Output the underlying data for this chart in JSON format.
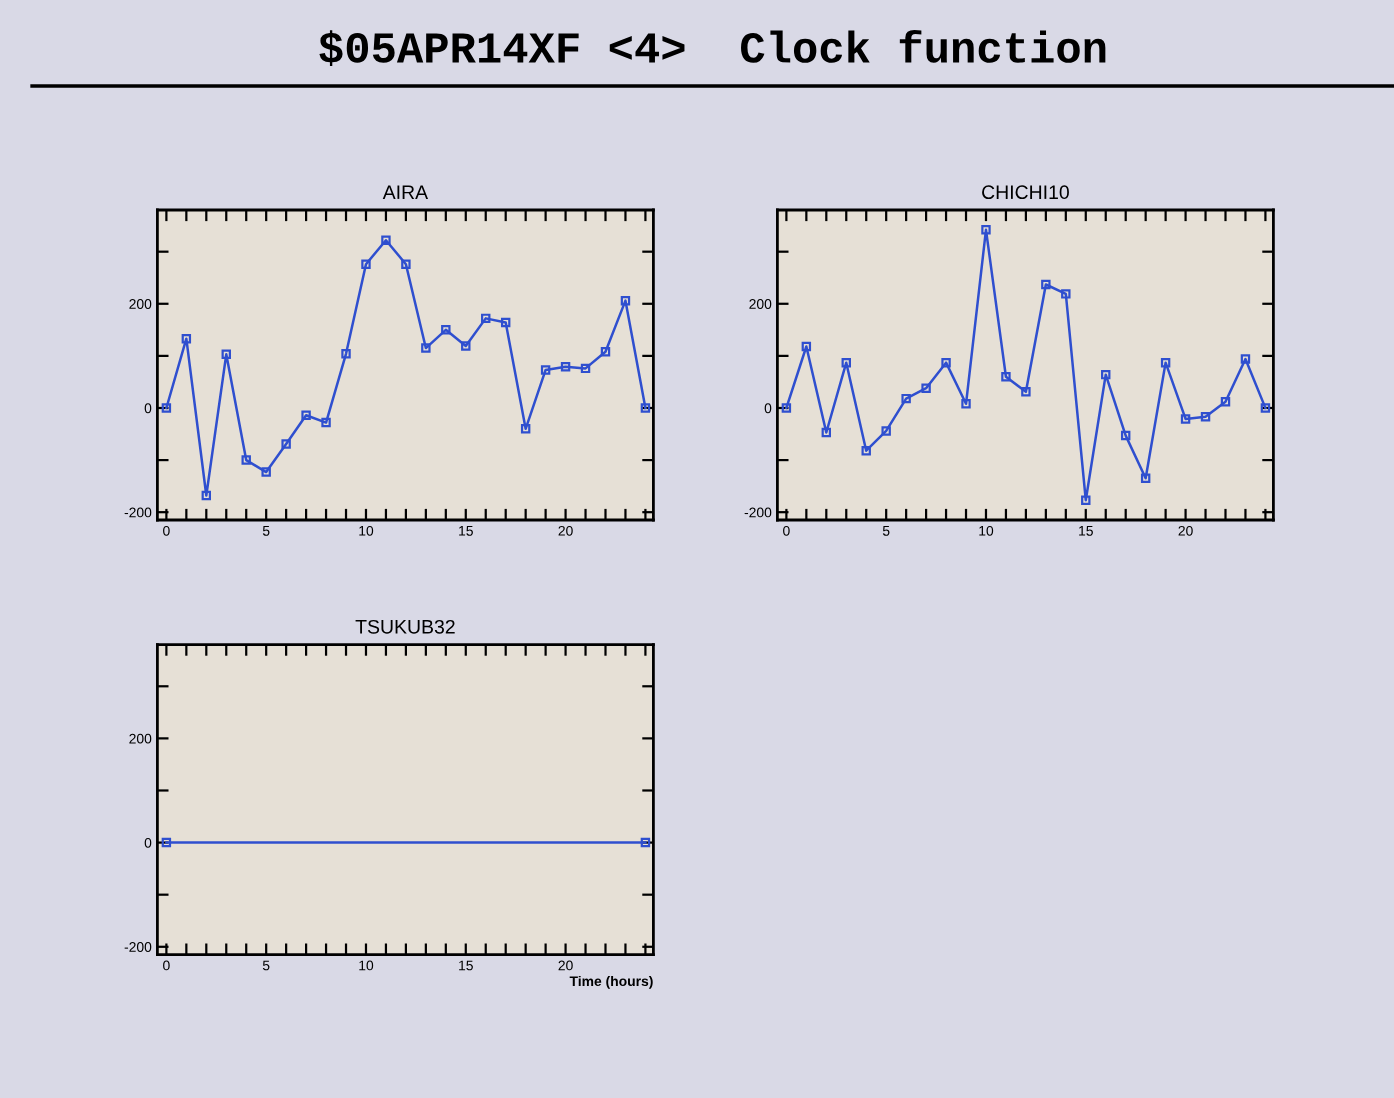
{
  "chart_data": [
    {
      "type": "other",
      "title": "$05APR14XF <4>  Clock function"
    },
    {
      "type": "line",
      "title": "AIRA",
      "x": [
        0,
        1,
        2,
        3,
        4,
        5,
        6,
        7,
        8,
        9,
        10,
        11,
        12,
        13,
        14,
        15,
        16,
        17,
        18,
        19,
        20,
        21,
        22,
        23,
        24
      ],
      "series": [
        {
          "color": "#2f4fcf",
          "values": [
            0,
            133,
            -168,
            103,
            -100,
            -123,
            -69,
            -14,
            -28,
            104,
            276,
            322,
            276,
            115,
            150,
            119,
            172,
            164,
            -40,
            73,
            79,
            76,
            108,
            206,
            0
          ]
        }
      ],
      "xlim": [
        -0.45,
        24.4
      ],
      "ylim": [
        -215,
        380
      ],
      "xticks": [
        0,
        {
          "value": 1,
          "label": null
        },
        {
          "value": 2,
          "label": null
        },
        {
          "value": 3,
          "label": null
        },
        {
          "value": 4,
          "label": null
        },
        5,
        {
          "value": 6,
          "label": null
        },
        {
          "value": 7,
          "label": null
        },
        {
          "value": 8,
          "label": null
        },
        {
          "value": 9,
          "label": null
        },
        10,
        {
          "value": 11,
          "label": null
        },
        {
          "value": 12,
          "label": null
        },
        {
          "value": 13,
          "label": null
        },
        {
          "value": 14,
          "label": null
        },
        15,
        {
          "value": 16,
          "label": null
        },
        {
          "value": 17,
          "label": null
        },
        {
          "value": 18,
          "label": null
        },
        {
          "value": 19,
          "label": null
        },
        20,
        {
          "value": 21,
          "label": null
        },
        {
          "value": 22,
          "label": null
        },
        {
          "value": 23,
          "label": null
        },
        {
          "value": 24,
          "label": null
        }
      ],
      "yticks": [
        -200,
        {
          "value": -100,
          "label": null
        },
        0,
        {
          "value": 100,
          "label": null
        },
        200,
        {
          "value": 300,
          "label": null
        }
      ],
      "marker": "square",
      "line_style": "solid"
    },
    {
      "type": "line",
      "title": "CHICHI10",
      "x": [
        0,
        1,
        2,
        3,
        4,
        5,
        6,
        7,
        8,
        9,
        10,
        11,
        12,
        13,
        14,
        15,
        16,
        17,
        18,
        19,
        20,
        21,
        22,
        23,
        24
      ],
      "series": [
        {
          "color": "#2f4fcf",
          "values": [
            0,
            118,
            -47,
            87,
            -82,
            -44,
            18,
            38,
            87,
            8,
            342,
            60,
            31,
            237,
            219,
            -177,
            64,
            -53,
            -135,
            87,
            -21,
            -17,
            12,
            94,
            0
          ]
        }
      ],
      "xlim": [
        -0.45,
        24.4
      ],
      "ylim": [
        -215,
        380
      ],
      "xticks": [
        0,
        {
          "value": 1,
          "label": null
        },
        {
          "value": 2,
          "label": null
        },
        {
          "value": 3,
          "label": null
        },
        {
          "value": 4,
          "label": null
        },
        5,
        {
          "value": 6,
          "label": null
        },
        {
          "value": 7,
          "label": null
        },
        {
          "value": 8,
          "label": null
        },
        {
          "value": 9,
          "label": null
        },
        10,
        {
          "value": 11,
          "label": null
        },
        {
          "value": 12,
          "label": null
        },
        {
          "value": 13,
          "label": null
        },
        {
          "value": 14,
          "label": null
        },
        15,
        {
          "value": 16,
          "label": null
        },
        {
          "value": 17,
          "label": null
        },
        {
          "value": 18,
          "label": null
        },
        {
          "value": 19,
          "label": null
        },
        20,
        {
          "value": 21,
          "label": null
        },
        {
          "value": 22,
          "label": null
        },
        {
          "value": 23,
          "label": null
        },
        {
          "value": 24,
          "label": null
        }
      ],
      "yticks": [
        -200,
        {
          "value": -100,
          "label": null
        },
        0,
        {
          "value": 100,
          "label": null
        },
        200,
        {
          "value": 300,
          "label": null
        }
      ],
      "marker": "square",
      "line_style": "solid"
    },
    {
      "type": "line",
      "title": "TSUKUB32",
      "xlabel": "Time (hours)",
      "x": [
        0,
        24
      ],
      "series": [
        {
          "color": "#2f4fcf",
          "values": [
            0,
            0
          ]
        }
      ],
      "xlim": [
        -0.45,
        24.4
      ],
      "ylim": [
        -215,
        380
      ],
      "xticks": [
        0,
        {
          "value": 1,
          "label": null
        },
        {
          "value": 2,
          "label": null
        },
        {
          "value": 3,
          "label": null
        },
        {
          "value": 4,
          "label": null
        },
        5,
        {
          "value": 6,
          "label": null
        },
        {
          "value": 7,
          "label": null
        },
        {
          "value": 8,
          "label": null
        },
        {
          "value": 9,
          "label": null
        },
        10,
        {
          "value": 11,
          "label": null
        },
        {
          "value": 12,
          "label": null
        },
        {
          "value": 13,
          "label": null
        },
        {
          "value": 14,
          "label": null
        },
        15,
        {
          "value": 16,
          "label": null
        },
        {
          "value": 17,
          "label": null
        },
        {
          "value": 18,
          "label": null
        },
        {
          "value": 19,
          "label": null
        },
        20,
        {
          "value": 21,
          "label": null
        },
        {
          "value": 22,
          "label": null
        },
        {
          "value": 23,
          "label": null
        },
        {
          "value": 24,
          "label": null
        }
      ],
      "yticks": [
        -200,
        {
          "value": -100,
          "label": null
        },
        0,
        {
          "value": 100,
          "label": null
        },
        200,
        {
          "value": 300,
          "label": null
        }
      ],
      "marker": "square",
      "line_style": "solid"
    }
  ]
}
